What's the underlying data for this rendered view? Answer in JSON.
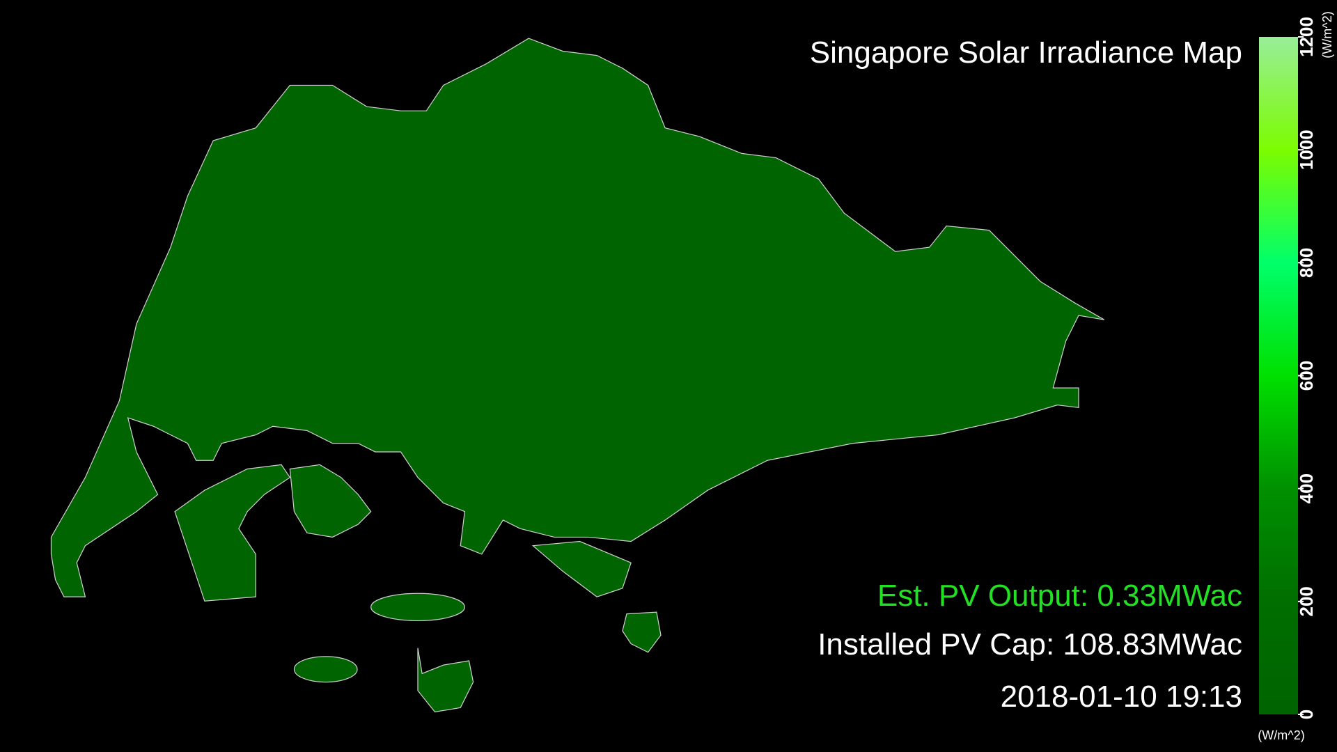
{
  "title": "Singapore Solar Irradiance Map",
  "pv_output": "Est. PV Output: 0.33MWac",
  "installed_cap": "Installed PV Cap: 108.83MWac",
  "timestamp": "2018-01-10 19:13",
  "colorbar": {
    "lim": [
      0,
      1200
    ],
    "ticks": [
      0,
      200,
      400,
      600,
      800,
      1000,
      1200
    ],
    "colors": [
      "#006400",
      "#006e00",
      "#009000",
      "#00e000",
      "#00ff6a",
      "#7cfc00",
      "#98ee98"
    ],
    "unit_top": "(W/m^2)",
    "unit_bottom": "(W/m^2)"
  }
}
